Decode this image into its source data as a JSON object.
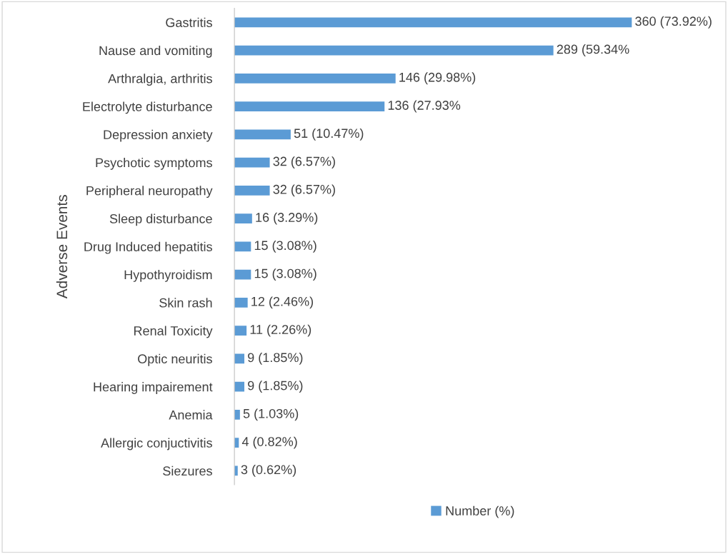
{
  "chart_data": {
    "type": "bar",
    "orientation": "horizontal",
    "ylabel": "Adverse Events",
    "categories": [
      "Gastritis",
      "Nause and vomiting",
      "Arthralgia, arthritis",
      "Electrolyte disturbance",
      "Depression anxiety",
      "Psychotic symptoms",
      "Peripheral neuropathy",
      "Sleep disturbance",
      "Drug Induced hepatitis",
      "Hypothyroidism",
      "Skin rash",
      "Renal Toxicity",
      "Optic neuritis",
      "Hearing impairement",
      "Anemia",
      "Allergic conjuctivitis",
      "Siezures"
    ],
    "series": [
      {
        "name": "Number (%)",
        "color": "#5b9bd5",
        "values": [
          360,
          289,
          146,
          136,
          51,
          32,
          32,
          16,
          15,
          15,
          12,
          11,
          9,
          9,
          5,
          4,
          3
        ],
        "value_labels": [
          "360 (73.92%)",
          "289 (59.34%",
          "146 (29.98%)",
          "136 (27.93%",
          "51 (10.47%)",
          "32 (6.57%)",
          "32 (6.57%)",
          "16 (3.29%)",
          "15 (3.08%)",
          "15 (3.08%)",
          "12 (2.46%)",
          "11 (2.26%)",
          "9 (1.85%)",
          "9 (1.85%)",
          "5 (1.03%)",
          "4 (0.82%)",
          "3 (0.62%)"
        ]
      }
    ],
    "legend": "bottom"
  }
}
